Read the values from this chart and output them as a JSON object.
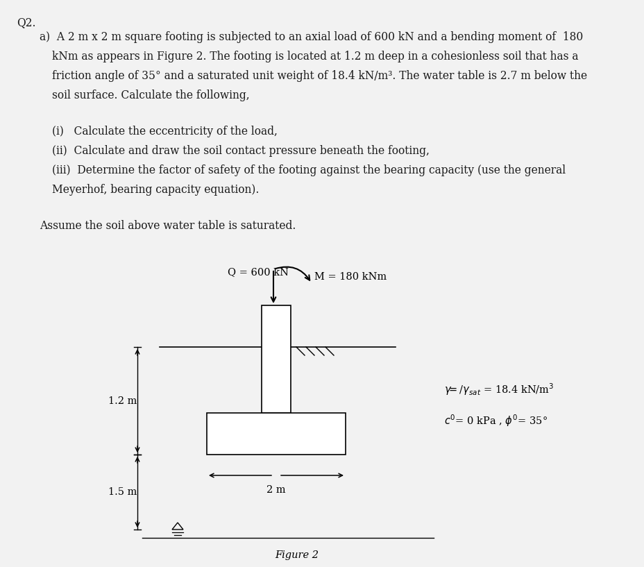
{
  "title_q": "Q2.",
  "line_a1": "a)  A 2 m x 2 m square footing is subjected to an axial load of 600 kN and a bending moment of  180",
  "line_a2": "kNm as appears in Figure 2. The footing is located at 1.2 m deep in a cohesionless soil that has a",
  "line_a3": "friction angle of 35° and a saturated unit weight of 18.4 kN/m³. The water table is 2.7 m below the",
  "line_a4": "soil surface. Calculate the following,",
  "item_i": "(i)   Calculate the eccentricity of the load,",
  "item_ii": "(ii)  Calculate and draw the soil contact pressure beneath the footing,",
  "item_iii1": "(iii)  Determine the factor of safety of the footing against the bearing capacity (use the general",
  "item_iii2": "Meyerhof, bearing capacity equation).",
  "assume": "Assume the soil above water table is saturated.",
  "label_Q": "Q = 600 kN",
  "label_M": "M = 180 kNm",
  "label_gamma": "γ⁾/γsat = 18.4 kN/m³",
  "label_c_phi": "c′= 0 kPa , ϕ′= 35°",
  "label_12m": "1.2 m",
  "label_15m": "1.5 m",
  "label_2m": "2 m",
  "fig_caption": "Figure 2",
  "bg_color": "#f2f2f2",
  "text_color": "#1a1a1a"
}
